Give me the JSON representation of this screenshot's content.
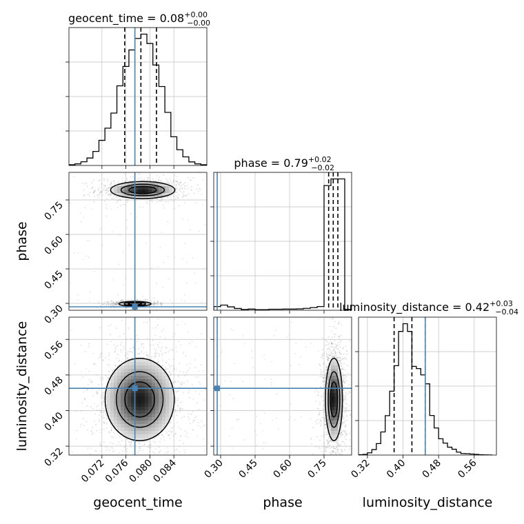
{
  "chart_data": {
    "type": "corner",
    "parameters": [
      {
        "name": "geocent_time",
        "axis_label": "geocent_time",
        "range": [
          0.0665,
          0.0895
        ],
        "ticks": [
          0.072,
          0.076,
          0.08,
          0.084
        ],
        "tick_labels": [
          "0.072",
          "0.076",
          "0.080",
          "0.084"
        ],
        "injection": 0.0775,
        "quantiles": [
          0.0758,
          0.0785,
          0.0811
        ],
        "title": {
          "main": "geocent_time = 0.08",
          "sup": "+0.00",
          "sub": "−0.00"
        },
        "histogram": {
          "bin_edges": [
            0.0665,
            0.0675,
            0.0685,
            0.0695,
            0.0705,
            0.0715,
            0.0725,
            0.0735,
            0.0745,
            0.0755,
            0.0765,
            0.0775,
            0.0785,
            0.0795,
            0.0805,
            0.0815,
            0.0825,
            0.0835,
            0.0845,
            0.0855,
            0.0865,
            0.0875,
            0.0885,
            0.0895
          ],
          "counts": [
            0.5,
            1.1,
            2.6,
            5.2,
            9.8,
            17.5,
            26,
            36.5,
            55.5,
            69,
            80.5,
            88.5,
            91.5,
            85,
            70,
            55,
            37,
            20,
            11,
            6,
            2.5,
            1.1,
            0.5
          ]
        }
      },
      {
        "name": "phase",
        "axis_label": "phase",
        "range": [
          0.27,
          0.87
        ],
        "ticks": [
          0.3,
          0.45,
          0.6,
          0.75
        ],
        "tick_labels": [
          "0.30",
          "0.45",
          "0.60",
          "0.75"
        ],
        "injection": 0.285,
        "quantiles": [
          0.77,
          0.79,
          0.81
        ],
        "title": {
          "main": "phase = 0.79",
          "sup": "+0.02",
          "sub": "−0.02"
        },
        "histogram": {
          "bin_edges": [
            0.27,
            0.3,
            0.33,
            0.36,
            0.39,
            0.42,
            0.45,
            0.48,
            0.51,
            0.54,
            0.57,
            0.6,
            0.63,
            0.66,
            0.69,
            0.72,
            0.75,
            0.78,
            0.81,
            0.84,
            0.87
          ],
          "counts": [
            2.5,
            3.5,
            2.3,
            1.2,
            0.5,
            0.8,
            0.4,
            0.4,
            0.7,
            0.7,
            0.8,
            0.8,
            0.9,
            1.3,
            1.8,
            2.5,
            84.5,
            89,
            89,
            0.6
          ]
        }
      },
      {
        "name": "luminosity_distance",
        "axis_label": "luminosity_distance",
        "range": [
          0.3,
          0.61
        ],
        "ticks": [
          0.32,
          0.4,
          0.48,
          0.56
        ],
        "tick_labels": [
          "0.32",
          "0.40",
          "0.48",
          "0.56"
        ],
        "injection": 0.45,
        "quantiles": [
          0.38,
          0.42,
          0.45
        ],
        "title": {
          "main": "luminosity_distance = 0.42",
          "sup": "+0.03",
          "sub": "−0.04"
        },
        "histogram": {
          "bin_edges": [
            0.3,
            0.31,
            0.32,
            0.33,
            0.34,
            0.35,
            0.36,
            0.37,
            0.38,
            0.39,
            0.4,
            0.41,
            0.42,
            0.43,
            0.44,
            0.45,
            0.46,
            0.47,
            0.48,
            0.49,
            0.5,
            0.51,
            0.52,
            0.53,
            0.54,
            0.55,
            0.56,
            0.57,
            0.58,
            0.59,
            0.6
          ],
          "counts": [
            0.2,
            0.4,
            1.3,
            3.2,
            6.7,
            13.5,
            23,
            37.3,
            52.2,
            72.2,
            76.7,
            72.2,
            51.8,
            50.5,
            46.8,
            41.6,
            23.1,
            15.8,
            9.5,
            7.0,
            4.6,
            3.4,
            1.7,
            0.9,
            0.8,
            0.6,
            0.4,
            0.2,
            0.1,
            0.05
          ]
        }
      }
    ],
    "pairs": [
      {
        "x_param": 0,
        "y_param": 1,
        "modes": [
          {
            "cx": 0.0788,
            "cy": 0.793,
            "sx": 0.0026,
            "sy": 0.018
          },
          {
            "cx": 0.0775,
            "cy": 0.298,
            "sx": 0.0013,
            "sy": 0.005
          }
        ]
      },
      {
        "x_param": 0,
        "y_param": 2,
        "modes": [
          {
            "cx": 0.0783,
            "cy": 0.425,
            "sx": 0.0028,
            "sy": 0.045
          }
        ]
      },
      {
        "x_param": 1,
        "y_param": 2,
        "modes": [
          {
            "cx": 0.793,
            "cy": 0.425,
            "sx": 0.018,
            "sy": 0.045
          }
        ]
      }
    ],
    "colors": {
      "injection": "#4682b4",
      "contour": "#000000",
      "grid": "#bfbfbf"
    },
    "grid": true
  }
}
